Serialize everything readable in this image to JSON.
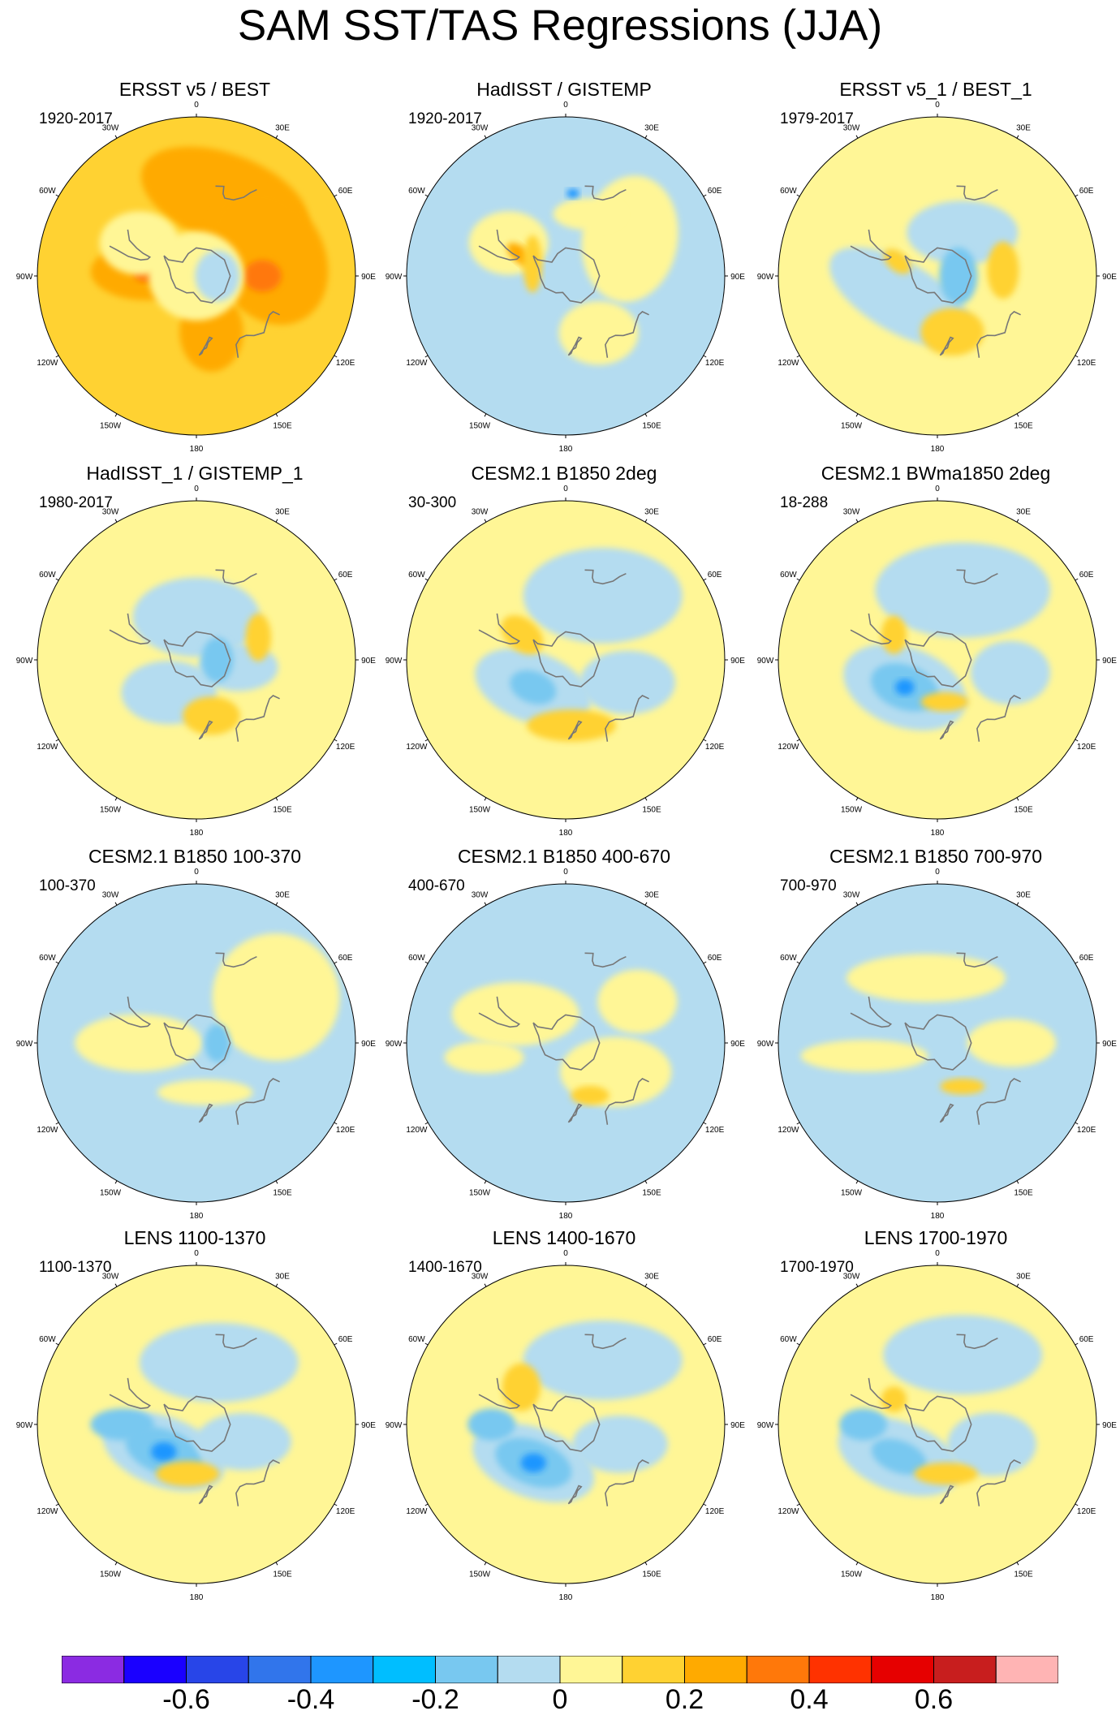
{
  "title": "SAM SST/TAS Regressions (JJA)",
  "panels": [
    {
      "title": "ERSST v5 / BEST",
      "period": "1920-2017"
    },
    {
      "title": "HadISST / GISTEMP",
      "period": "1920-2017"
    },
    {
      "title": "ERSST v5_1 / BEST_1",
      "period": "1979-2017"
    },
    {
      "title": "HadISST_1 / GISTEMP_1",
      "period": "1980-2017"
    },
    {
      "title": "CESM2.1 B1850 2deg",
      "period": "30-300"
    },
    {
      "title": "CESM2.1 BWma1850 2deg",
      "period": "18-288"
    },
    {
      "title": "CESM2.1 B1850 100-370",
      "period": "100-370"
    },
    {
      "title": "CESM2.1 B1850 400-670",
      "period": "400-670"
    },
    {
      "title": "CESM2.1 B1850 700-970",
      "period": "700-970"
    },
    {
      "title": "LENS 1100-1370",
      "period": "1100-1370"
    },
    {
      "title": "LENS 1400-1670",
      "period": "1400-1670"
    },
    {
      "title": "LENS 1700-1970",
      "period": "1700-1970"
    }
  ],
  "longitude_labels": [
    "0",
    "30E",
    "60E",
    "90E",
    "120E",
    "150E",
    "180",
    "150W",
    "120W",
    "90W",
    "60W",
    "30W"
  ],
  "chart_data": {
    "type": "polar_contour_map",
    "projection": "south polar stereographic",
    "rows": 4,
    "cols": 3,
    "colorbar": {
      "colors": [
        "#8b2be2",
        "#1a00ff",
        "#2845e8",
        "#3175eb",
        "#1e96ff",
        "#00beff",
        "#78c8f0",
        "#b4dcf0",
        "#fff696",
        "#ffd232",
        "#ffaa00",
        "#ff780a",
        "#ff3200",
        "#e60000",
        "#c81e1e",
        "#ffb4b4"
      ],
      "tick_labels": [
        "-0.6",
        "-0.4",
        "-0.2",
        "0",
        "0.2",
        "0.4",
        "0.6"
      ],
      "tick_values": [
        -0.6,
        -0.4,
        -0.2,
        0,
        0.2,
        0.4,
        0.6
      ],
      "range": [
        -0.8,
        0.8
      ]
    },
    "panel_fields": [
      {
        "base": "#ffd232",
        "patches": [
          {
            "lon": 20,
            "lat": -35,
            "rx": 0.55,
            "ry": 0.28,
            "rot": 20,
            "color": "#ffaa00"
          },
          {
            "lon": 75,
            "lat": -40,
            "rx": 0.45,
            "ry": 0.35,
            "rot": 60,
            "color": "#ffaa00"
          },
          {
            "lon": 90,
            "lat": -45,
            "rx": 0.12,
            "ry": 0.1,
            "rot": 0,
            "color": "#ff780a"
          },
          {
            "lon": -85,
            "lat": -55,
            "rx": 0.35,
            "ry": 0.18,
            "rot": 0,
            "color": "#ffaa00"
          },
          {
            "lon": -88,
            "lat": -55,
            "rx": 0.08,
            "ry": 0.05,
            "rot": 0,
            "color": "#ff780a"
          },
          {
            "lon": 165,
            "lat": -50,
            "rx": 0.2,
            "ry": 0.25,
            "rot": 0,
            "color": "#ffaa00"
          },
          {
            "lon": -60,
            "lat": -45,
            "rx": 0.25,
            "ry": 0.2,
            "rot": 0,
            "color": "#fff696"
          },
          {
            "lon": 0,
            "lat": -90,
            "rx": 0.3,
            "ry": 0.28,
            "rot": 0,
            "color": "#fff696"
          },
          {
            "lon": 90,
            "lat": -75,
            "rx": 0.14,
            "ry": 0.16,
            "rot": 0,
            "color": "#b4dcf0"
          }
        ]
      },
      {
        "base": "#b4dcf0",
        "patches": [
          {
            "lon": 60,
            "lat": -40,
            "rx": 0.3,
            "ry": 0.4,
            "rot": 10,
            "color": "#fff696"
          },
          {
            "lon": -60,
            "lat": -45,
            "rx": 0.25,
            "ry": 0.2,
            "rot": 0,
            "color": "#fff696"
          },
          {
            "lon": -65,
            "lat": -55,
            "rx": 0.1,
            "ry": 0.05,
            "rot": 40,
            "color": "#ffaa00"
          },
          {
            "lon": 150,
            "lat": -45,
            "rx": 0.25,
            "ry": 0.2,
            "rot": 0,
            "color": "#fff696"
          },
          {
            "lon": 20,
            "lat": -45,
            "rx": 0.22,
            "ry": 0.1,
            "rot": 0,
            "color": "#fff696"
          },
          {
            "lon": 5,
            "lat": -35,
            "rx": 0.04,
            "ry": 0.03,
            "rot": 0,
            "color": "#1e96ff"
          },
          {
            "lon": -70,
            "lat": -65,
            "rx": 0.06,
            "ry": 0.18,
            "rot": 0,
            "color": "#ffd232"
          }
        ]
      },
      {
        "base": "#fff696",
        "patches": [
          {
            "lon": -120,
            "lat": -60,
            "rx": 0.5,
            "ry": 0.22,
            "rot": 30,
            "color": "#b4dcf0"
          },
          {
            "lon": 30,
            "lat": -55,
            "rx": 0.35,
            "ry": 0.2,
            "rot": 0,
            "color": "#b4dcf0"
          },
          {
            "lon": 85,
            "lat": -45,
            "rx": 0.1,
            "ry": 0.18,
            "rot": 0,
            "color": "#ffd232"
          },
          {
            "lon": 165,
            "lat": -50,
            "rx": 0.2,
            "ry": 0.15,
            "rot": 0,
            "color": "#ffd232"
          },
          {
            "lon": -70,
            "lat": -60,
            "rx": 0.1,
            "ry": 0.06,
            "rot": 40,
            "color": "#ffd232"
          },
          {
            "lon": 90,
            "lat": -75,
            "rx": 0.12,
            "ry": 0.18,
            "rot": 0,
            "color": "#78c8f0"
          }
        ]
      },
      {
        "base": "#fff696",
        "patches": [
          {
            "lon": 0,
            "lat": -60,
            "rx": 0.4,
            "ry": 0.25,
            "rot": 0,
            "color": "#b4dcf0"
          },
          {
            "lon": -140,
            "lat": -60,
            "rx": 0.3,
            "ry": 0.2,
            "rot": 0,
            "color": "#b4dcf0"
          },
          {
            "lon": 100,
            "lat": -60,
            "rx": 0.25,
            "ry": 0.15,
            "rot": 0,
            "color": "#b4dcf0"
          },
          {
            "lon": 70,
            "lat": -45,
            "rx": 0.08,
            "ry": 0.15,
            "rot": 0,
            "color": "#ffd232"
          },
          {
            "lon": 165,
            "lat": -50,
            "rx": 0.18,
            "ry": 0.12,
            "rot": 0,
            "color": "#ffd232"
          },
          {
            "lon": 90,
            "lat": -75,
            "rx": 0.1,
            "ry": 0.14,
            "rot": 0,
            "color": "#78c8f0"
          }
        ]
      },
      {
        "base": "#fff696",
        "patches": [
          {
            "lon": 30,
            "lat": -40,
            "rx": 0.5,
            "ry": 0.3,
            "rot": 0,
            "color": "#b4dcf0"
          },
          {
            "lon": -130,
            "lat": -60,
            "rx": 0.38,
            "ry": 0.22,
            "rot": 20,
            "color": "#b4dcf0"
          },
          {
            "lon": -130,
            "lat": -60,
            "rx": 0.15,
            "ry": 0.1,
            "rot": 20,
            "color": "#78c8f0"
          },
          {
            "lon": 110,
            "lat": -45,
            "rx": 0.3,
            "ry": 0.2,
            "rot": 0,
            "color": "#b4dcf0"
          },
          {
            "lon": -60,
            "lat": -55,
            "rx": 0.15,
            "ry": 0.1,
            "rot": 40,
            "color": "#ffd232"
          },
          {
            "lon": 175,
            "lat": -45,
            "rx": 0.28,
            "ry": 0.1,
            "rot": 0,
            "color": "#ffd232"
          }
        ]
      },
      {
        "base": "#fff696",
        "patches": [
          {
            "lon": 20,
            "lat": -40,
            "rx": 0.55,
            "ry": 0.3,
            "rot": 0,
            "color": "#b4dcf0"
          },
          {
            "lon": -130,
            "lat": -60,
            "rx": 0.4,
            "ry": 0.25,
            "rot": 20,
            "color": "#b4dcf0"
          },
          {
            "lon": -130,
            "lat": -60,
            "rx": 0.22,
            "ry": 0.14,
            "rot": 20,
            "color": "#78c8f0"
          },
          {
            "lon": -130,
            "lat": -60,
            "rx": 0.06,
            "ry": 0.05,
            "rot": 0,
            "color": "#1e96ff"
          },
          {
            "lon": 100,
            "lat": -40,
            "rx": 0.25,
            "ry": 0.2,
            "rot": 0,
            "color": "#b4dcf0"
          },
          {
            "lon": -60,
            "lat": -55,
            "rx": 0.08,
            "ry": 0.12,
            "rot": 0,
            "color": "#ffd232"
          },
          {
            "lon": 170,
            "lat": -60,
            "rx": 0.15,
            "ry": 0.06,
            "rot": 0,
            "color": "#ffd232"
          }
        ]
      },
      {
        "base": "#b4dcf0",
        "patches": [
          {
            "lon": 60,
            "lat": -30,
            "rx": 0.4,
            "ry": 0.4,
            "rot": 0,
            "color": "#fff696"
          },
          {
            "lon": -90,
            "lat": -50,
            "rx": 0.4,
            "ry": 0.18,
            "rot": 0,
            "color": "#fff696"
          },
          {
            "lon": 170,
            "lat": -55,
            "rx": 0.3,
            "ry": 0.08,
            "rot": 0,
            "color": "#fff696"
          },
          {
            "lon": 90,
            "lat": -75,
            "rx": 0.08,
            "ry": 0.12,
            "rot": 0,
            "color": "#78c8f0"
          }
        ]
      },
      {
        "base": "#b4dcf0",
        "patches": [
          {
            "lon": -60,
            "lat": -50,
            "rx": 0.4,
            "ry": 0.2,
            "rot": 0,
            "color": "#fff696"
          },
          {
            "lon": 120,
            "lat": -50,
            "rx": 0.35,
            "ry": 0.22,
            "rot": 0,
            "color": "#fff696"
          },
          {
            "lon": -100,
            "lat": -35,
            "rx": 0.25,
            "ry": 0.1,
            "rot": 0,
            "color": "#fff696"
          },
          {
            "lon": 155,
            "lat": -50,
            "rx": 0.12,
            "ry": 0.06,
            "rot": 0,
            "color": "#ffd232"
          },
          {
            "lon": 60,
            "lat": -35,
            "rx": 0.25,
            "ry": 0.2,
            "rot": 0,
            "color": "#fff696"
          }
        ]
      },
      {
        "base": "#b4dcf0",
        "patches": [
          {
            "lon": -10,
            "lat": -45,
            "rx": 0.5,
            "ry": 0.15,
            "rot": 0,
            "color": "#fff696"
          },
          {
            "lon": -100,
            "lat": -40,
            "rx": 0.4,
            "ry": 0.1,
            "rot": 0,
            "color": "#fff696"
          },
          {
            "lon": 90,
            "lat": -40,
            "rx": 0.28,
            "ry": 0.15,
            "rot": 0,
            "color": "#fff696"
          },
          {
            "lon": 150,
            "lat": -55,
            "rx": 0.14,
            "ry": 0.05,
            "rot": 0,
            "color": "#ffd232"
          }
        ]
      },
      {
        "base": "#fff696",
        "patches": [
          {
            "lon": 20,
            "lat": -45,
            "rx": 0.5,
            "ry": 0.25,
            "rot": 0,
            "color": "#b4dcf0"
          },
          {
            "lon": -130,
            "lat": -60,
            "rx": 0.4,
            "ry": 0.22,
            "rot": 20,
            "color": "#b4dcf0"
          },
          {
            "lon": -130,
            "lat": -60,
            "rx": 0.25,
            "ry": 0.14,
            "rot": 20,
            "color": "#78c8f0"
          },
          {
            "lon": -130,
            "lat": -60,
            "rx": 0.08,
            "ry": 0.06,
            "rot": 0,
            "color": "#1e96ff"
          },
          {
            "lon": -90,
            "lat": -40,
            "rx": 0.2,
            "ry": 0.1,
            "rot": 0,
            "color": "#78c8f0"
          },
          {
            "lon": 110,
            "lat": -55,
            "rx": 0.3,
            "ry": 0.18,
            "rot": 0,
            "color": "#b4dcf0"
          },
          {
            "lon": -170,
            "lat": -55,
            "rx": 0.2,
            "ry": 0.08,
            "rot": 0,
            "color": "#ffd232"
          }
        ]
      },
      {
        "base": "#fff696",
        "patches": [
          {
            "lon": 30,
            "lat": -40,
            "rx": 0.5,
            "ry": 0.25,
            "rot": 0,
            "color": "#b4dcf0"
          },
          {
            "lon": -140,
            "lat": -55,
            "rx": 0.4,
            "ry": 0.22,
            "rot": 20,
            "color": "#b4dcf0"
          },
          {
            "lon": -140,
            "lat": -55,
            "rx": 0.25,
            "ry": 0.14,
            "rot": 20,
            "color": "#78c8f0"
          },
          {
            "lon": -140,
            "lat": -55,
            "rx": 0.08,
            "ry": 0.06,
            "rot": 0,
            "color": "#1e96ff"
          },
          {
            "lon": -90,
            "lat": -40,
            "rx": 0.15,
            "ry": 0.1,
            "rot": 0,
            "color": "#78c8f0"
          },
          {
            "lon": 110,
            "lat": -50,
            "rx": 0.3,
            "ry": 0.18,
            "rot": 0,
            "color": "#b4dcf0"
          },
          {
            "lon": -50,
            "lat": -50,
            "rx": 0.12,
            "ry": 0.15,
            "rot": 0,
            "color": "#ffd232"
          }
        ]
      },
      {
        "base": "#fff696",
        "patches": [
          {
            "lon": 20,
            "lat": -40,
            "rx": 0.5,
            "ry": 0.25,
            "rot": 0,
            "color": "#b4dcf0"
          },
          {
            "lon": -130,
            "lat": -55,
            "rx": 0.4,
            "ry": 0.22,
            "rot": 20,
            "color": "#b4dcf0"
          },
          {
            "lon": -130,
            "lat": -55,
            "rx": 0.18,
            "ry": 0.1,
            "rot": 20,
            "color": "#78c8f0"
          },
          {
            "lon": -90,
            "lat": -40,
            "rx": 0.15,
            "ry": 0.1,
            "rot": 0,
            "color": "#78c8f0"
          },
          {
            "lon": 110,
            "lat": -50,
            "rx": 0.28,
            "ry": 0.2,
            "rot": 0,
            "color": "#b4dcf0"
          },
          {
            "lon": 170,
            "lat": -55,
            "rx": 0.2,
            "ry": 0.07,
            "rot": 0,
            "color": "#ffd232"
          },
          {
            "lon": -60,
            "lat": -55,
            "rx": 0.08,
            "ry": 0.08,
            "rot": 0,
            "color": "#ffd232"
          }
        ]
      }
    ]
  }
}
